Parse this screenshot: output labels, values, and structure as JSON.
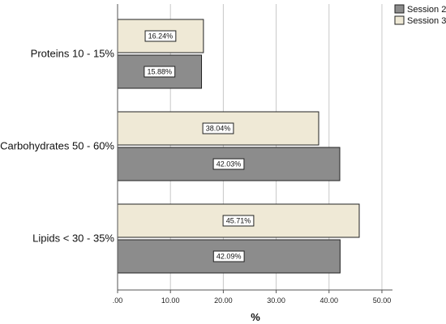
{
  "chart_data": {
    "type": "bar",
    "orientation": "horizontal",
    "categories": [
      "Proteins 10 - 15%",
      "Carbohydrates 50 - 60%",
      "Lipids < 30 - 35%"
    ],
    "series": [
      {
        "name": "Session 3",
        "color": "#efe9d6",
        "values": [
          16.24,
          38.04,
          45.71
        ],
        "labels": [
          "16.24%",
          "38.04%",
          "45.71%"
        ]
      },
      {
        "name": "Session 2",
        "color": "#8c8c8c",
        "values": [
          15.88,
          42.03,
          42.09
        ],
        "labels": [
          "15.88%",
          "42.03%",
          "42.09%"
        ]
      }
    ],
    "xlabel": "%",
    "xlim": [
      0,
      52
    ],
    "xticks": [
      0,
      10,
      20,
      30,
      40,
      50
    ],
    "xtick_labels": [
      ".00",
      "10.00",
      "20.00",
      "30.00",
      "40.00",
      "50.00"
    ],
    "grid": "vertical",
    "legend_placement": "top-right",
    "legend_order": [
      "Session 2",
      "Session 3"
    ]
  }
}
